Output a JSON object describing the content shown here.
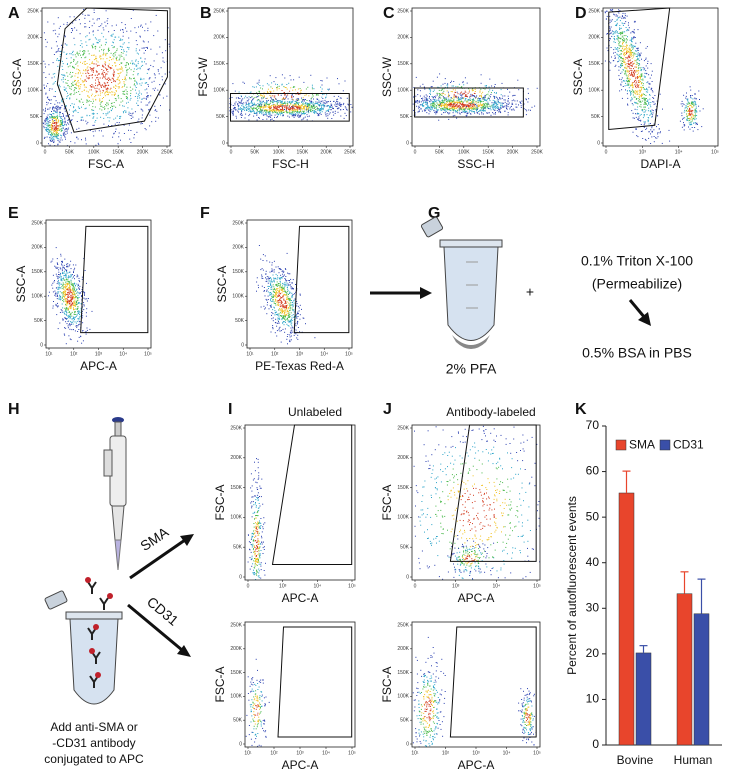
{
  "flow_panels": [
    {
      "letter": "A",
      "plots": [
        {
          "xlabel": "FSC-A",
          "ylabel": "SSC-A",
          "xticks": [
            "0",
            "50K",
            "100K",
            "150K",
            "200K",
            "250K"
          ],
          "yticks": [
            "0",
            "50K",
            "100K",
            "150K",
            "200K",
            "250K"
          ]
        }
      ]
    },
    {
      "letter": "B",
      "plots": [
        {
          "xlabel": "FSC-H",
          "ylabel": "FSC-W",
          "xticks": [
            "0",
            "50K",
            "100K",
            "150K",
            "200K",
            "250K"
          ],
          "yticks": [
            "0",
            "50K",
            "100K",
            "150K",
            "200K",
            "250K"
          ]
        }
      ]
    },
    {
      "letter": "C",
      "plots": [
        {
          "xlabel": "SSC-H",
          "ylabel": "SSC-W",
          "xticks": [
            "0",
            "50K",
            "100K",
            "150K",
            "200K",
            "250K"
          ],
          "yticks": [
            "0",
            "50K",
            "100K",
            "150K",
            "200K",
            "250K"
          ]
        }
      ]
    },
    {
      "letter": "D",
      "plots": [
        {
          "xlabel": "DAPI-A",
          "ylabel": "SSC-A",
          "xticks": [
            "0",
            "10³",
            "10⁴",
            "10⁵"
          ],
          "yticks": [
            "0",
            "50K",
            "100K",
            "150K",
            "200K",
            "250K"
          ]
        }
      ]
    },
    {
      "letter": "E",
      "plots": [
        {
          "xlabel": "APC-A",
          "ylabel": "SSC-A",
          "xticks": [
            "10¹",
            "10²",
            "10³",
            "10⁴",
            "10⁵"
          ],
          "yticks": [
            "0",
            "50K",
            "100K",
            "150K",
            "200K",
            "250K"
          ]
        }
      ]
    },
    {
      "letter": "F",
      "plots": [
        {
          "xlabel": "PE-Texas Red-A",
          "ylabel": "SSC-A",
          "xticks": [
            "10¹",
            "10²",
            "10³",
            "10⁴",
            "10⁵"
          ],
          "yticks": [
            "0",
            "50K",
            "100K",
            "150K",
            "200K",
            "250K"
          ]
        }
      ]
    },
    {
      "letter": "I",
      "title": "Unlabeled",
      "plots": [
        {
          "xlabel": "APC-A",
          "ylabel": "FSC-A",
          "xticks": [
            "0",
            "10³",
            "10⁴",
            "10⁵"
          ],
          "yticks": [
            "0",
            "50K",
            "100K",
            "150K",
            "200K",
            "250K"
          ]
        },
        {
          "xlabel": "APC-A",
          "ylabel": "FSC-A",
          "xticks": [
            "10¹",
            "10²",
            "10³",
            "10⁴",
            "10⁵"
          ],
          "yticks": [
            "0",
            "50K",
            "100K",
            "150K",
            "200K",
            "250K"
          ]
        }
      ]
    },
    {
      "letter": "J",
      "title": "Antibody-labeled",
      "plots": [
        {
          "xlabel": "APC-A",
          "ylabel": "FSC-A",
          "xticks": [
            "0",
            "10³",
            "10⁴",
            "10⁵"
          ],
          "yticks": [
            "0",
            "50K",
            "100K",
            "150K",
            "200K",
            "250K"
          ]
        },
        {
          "xlabel": "APC-A",
          "ylabel": "FSC-A",
          "xticks": [
            "10¹",
            "10²",
            "10³",
            "10⁴",
            "10⁵"
          ],
          "yticks": [
            "0",
            "50K",
            "100K",
            "150K",
            "200K",
            "250K"
          ]
        }
      ]
    }
  ],
  "workflow": {
    "letter": "G",
    "fixative": "2% PFA",
    "plus": "+",
    "permeabilizer": "0.1% Triton X-100",
    "permeabilize_note": "(Permeabilize)",
    "blocking": "0.5% BSA in PBS"
  },
  "labeling": {
    "letter": "H",
    "instruction": [
      "Add anti-SMA or",
      "-CD31 antibody",
      "conjugated to APC"
    ],
    "arrow_labels": [
      "SMA",
      "CD31"
    ]
  },
  "chart_data": {
    "type": "bar",
    "panel_label": "K",
    "ylabel": "Percent of autofluorescent events",
    "categories": [
      "Bovine",
      "Human"
    ],
    "series": [
      {
        "name": "SMA",
        "color": "#e8452c",
        "values": [
          55.3,
          33.2
        ],
        "errors": [
          4.8,
          4.8
        ]
      },
      {
        "name": "CD31",
        "color": "#3a4fa8",
        "values": [
          20.2,
          28.8
        ],
        "errors": [
          1.6,
          7.6
        ]
      }
    ],
    "ylim": [
      0,
      70
    ],
    "yticks": [
      0,
      10,
      20,
      30,
      40,
      50,
      60,
      70
    ],
    "legend": "top-left"
  }
}
